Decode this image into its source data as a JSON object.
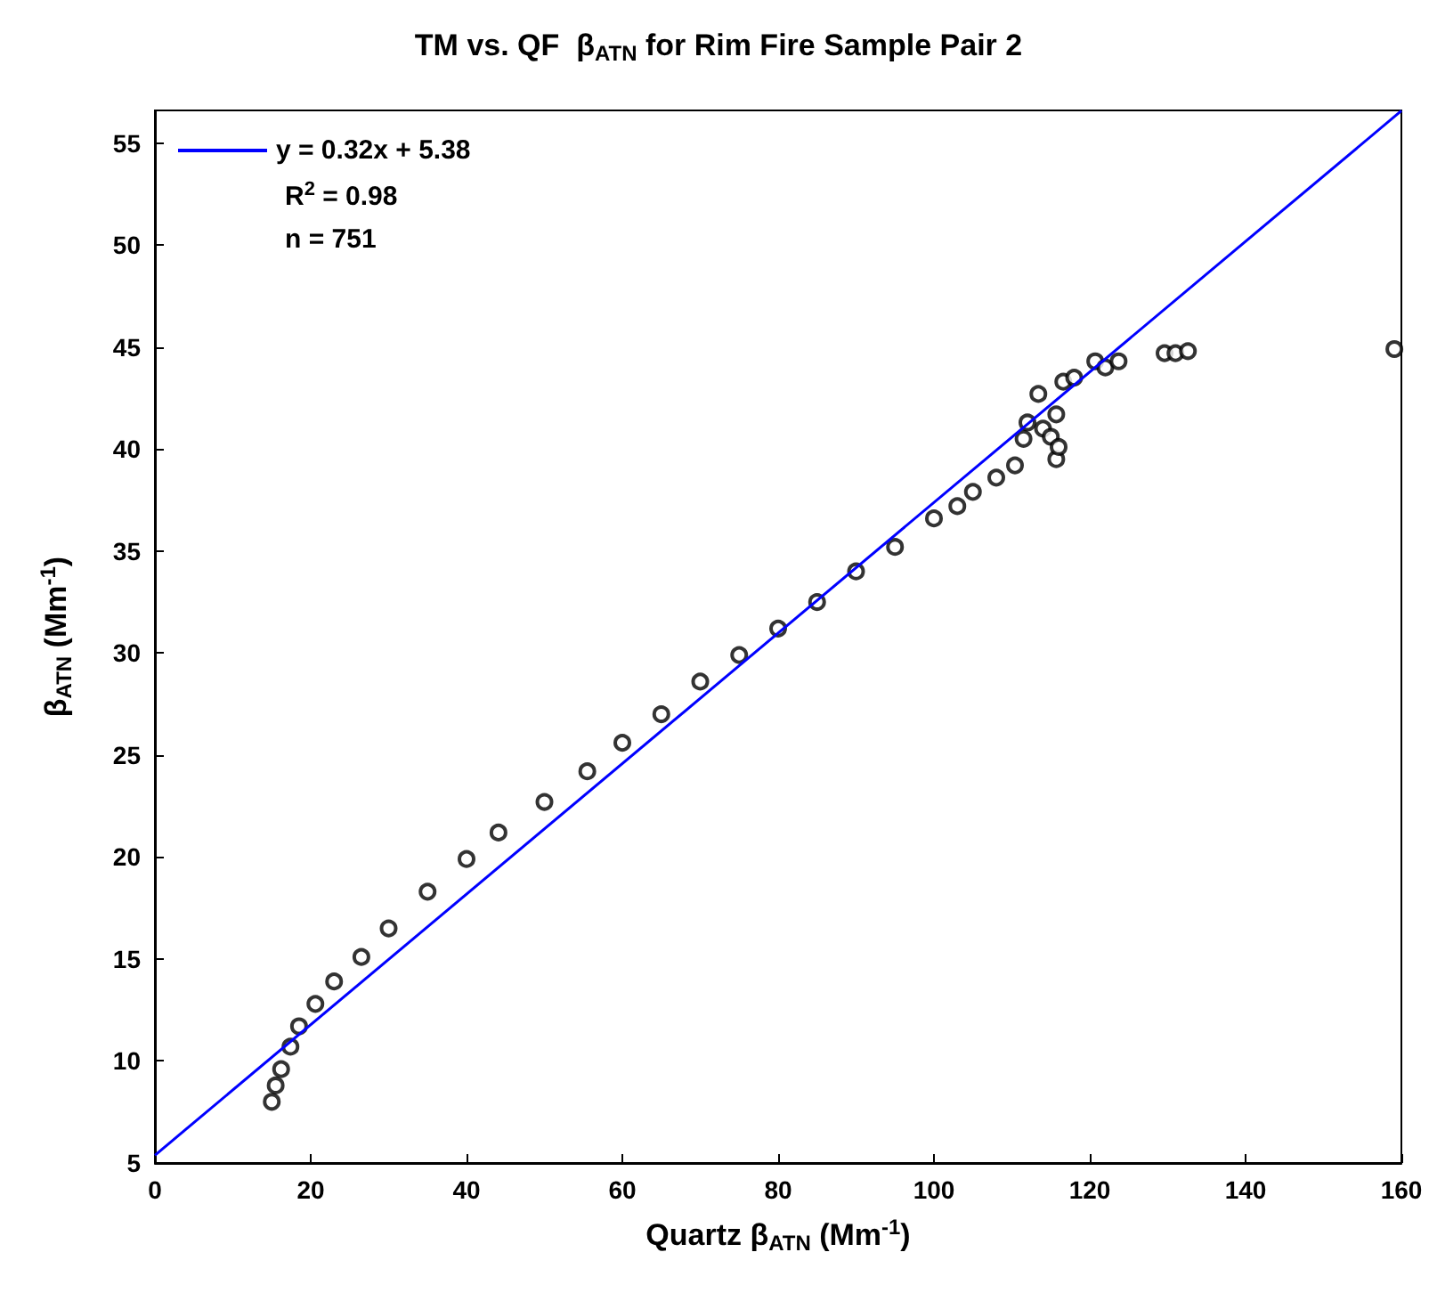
{
  "chart_data": {
    "type": "scatter",
    "title": "TM vs. QF  β$_{ATN}$ for Rim Fire Sample Pair 2",
    "xlabel": "Quartz β$_{ATN}$ (Mm$^{-1}$)",
    "ylabel": "β$_{ATN}$ (Mm$^{-1}$)",
    "annotations": [
      "R$^{2}$ = 0.98",
      "n = 751"
    ],
    "xlim": [
      0,
      160
    ],
    "ylim": [
      5,
      56.6
    ],
    "xticks": [
      0,
      20,
      40,
      60,
      80,
      100,
      120,
      140,
      160
    ],
    "yticks": [
      5,
      10,
      15,
      20,
      25,
      30,
      35,
      40,
      45,
      50,
      55
    ],
    "grid": false,
    "legend": "top left",
    "marker": "circle",
    "series": [
      {
        "color": "#000000",
        "x": [
          15,
          15.5,
          16.2,
          17.4,
          18.5,
          20.6,
          23,
          26.5,
          30,
          35,
          40,
          44.1,
          50,
          55.5,
          60,
          65,
          70,
          75,
          80,
          85,
          90,
          95,
          100,
          103,
          105,
          108,
          110.4,
          111.5,
          112,
          113.4,
          114,
          115,
          115.7,
          115.7,
          116,
          116.6,
          118,
          120.7,
          122,
          123.7,
          129.6,
          131,
          132.6,
          159.1
        ],
        "values": [
          8,
          8.8,
          9.6,
          10.7,
          11.7,
          12.8,
          13.9,
          15.1,
          16.5,
          18.3,
          19.9,
          21.2,
          22.7,
          24.2,
          25.6,
          27,
          28.6,
          29.9,
          31.2,
          32.5,
          34,
          35.2,
          36.6,
          37.2,
          37.9,
          38.6,
          39.2,
          40.5,
          41.3,
          42.7,
          41,
          40.6,
          39.5,
          41.7,
          40.1,
          43.3,
          43.5,
          44.3,
          44,
          44.3,
          44.7,
          44.7,
          44.8,
          44.9
        ]
      },
      {
        "type": "line",
        "name": "y = 0.32x + 5.38",
        "color": "#0000ff",
        "marker": "none",
        "x": [
          0,
          160
        ],
        "values": [
          5.38,
          56.58
        ]
      }
    ]
  }
}
